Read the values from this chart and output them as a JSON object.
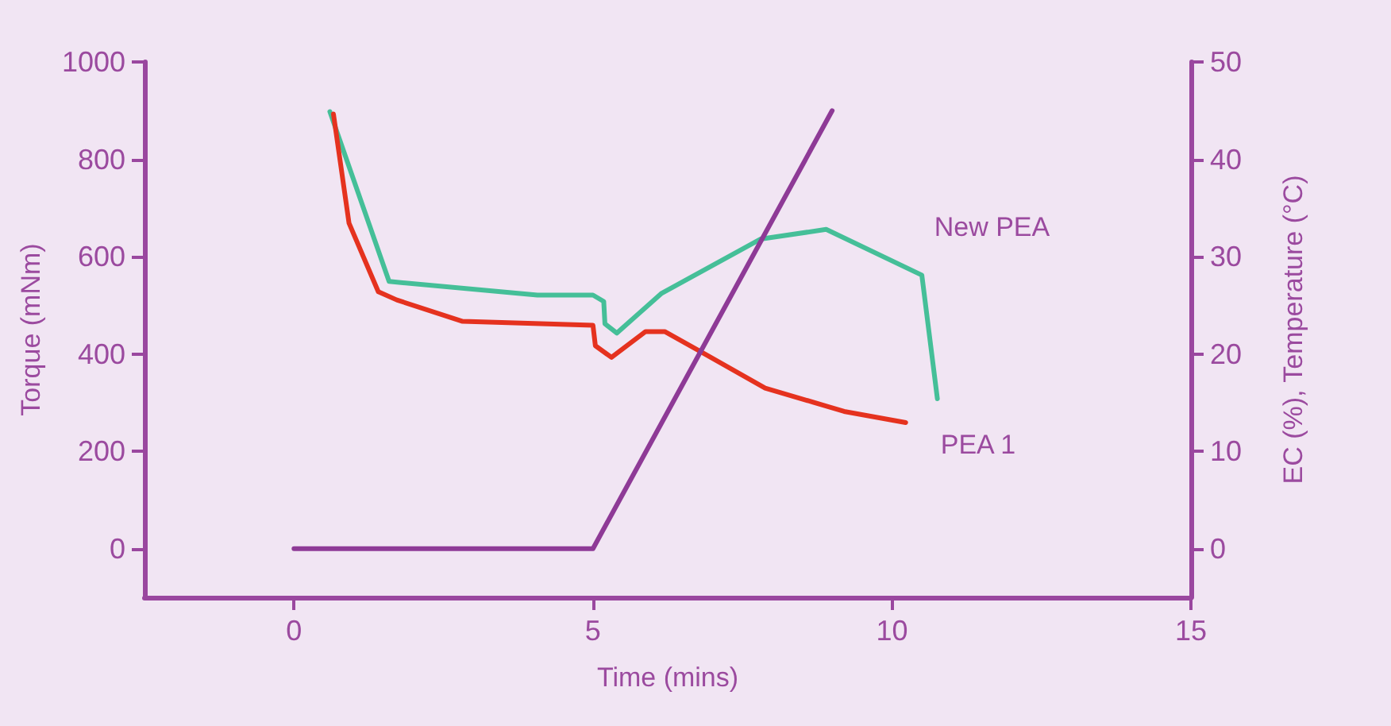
{
  "chart_data": {
    "type": "line",
    "xlabel": "Time (mins)",
    "ylabel": "Torque (mNm)",
    "y2label": "EC (%), Temperature (°C)",
    "xlim": [
      -2.5,
      15
    ],
    "xticks": [
      0,
      5,
      10,
      15
    ],
    "ylim": [
      -100,
      1000
    ],
    "yticks": [
      0,
      200,
      400,
      600,
      800,
      1000
    ],
    "y2lim": [
      -5,
      50
    ],
    "y2ticks": [
      0,
      10,
      20,
      30,
      40,
      50
    ],
    "grid": false,
    "legend": false,
    "line_style": "solid",
    "marker": "none",
    "series": [
      {
        "name": "New PEA",
        "color": "#45bf98",
        "x": [
          0.6,
          1.59,
          4.07,
          5.0,
          5.18,
          5.2,
          5.4,
          6.14,
          7.8,
          8.9,
          10.5,
          10.76
        ],
        "values": [
          898,
          549,
          521,
          521,
          508,
          462,
          443,
          524,
          636,
          656,
          562,
          308
        ]
      },
      {
        "name": "PEA 1",
        "color": "#e5321f",
        "x": [
          0.66,
          0.92,
          1.41,
          1.72,
          2.82,
          5.0,
          5.04,
          5.31,
          5.88,
          6.2,
          6.77,
          7.88,
          9.2,
          10.23
        ],
        "values": [
          893,
          669,
          528,
          511,
          467,
          459,
          417,
          393,
          446,
          446,
          407,
          330,
          282,
          259
        ]
      },
      {
        "color": "#8e3a96",
        "axis": "y2",
        "x": [
          0,
          5,
          9
        ],
        "values": [
          0,
          0,
          45
        ]
      }
    ]
  }
}
